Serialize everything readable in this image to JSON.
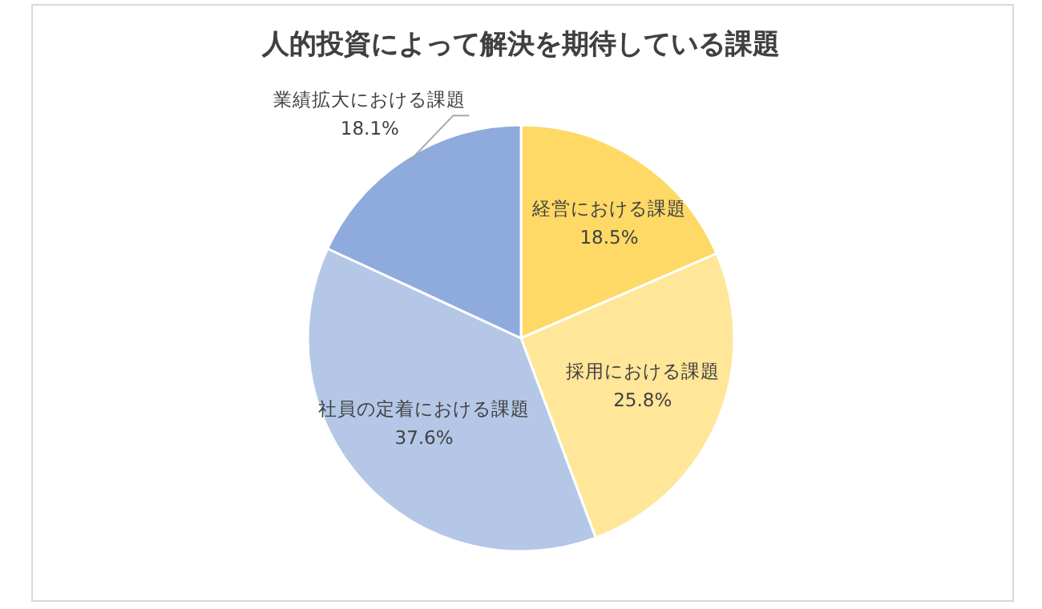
{
  "chart_data": {
    "type": "pie",
    "title": "人的投資によって解決を期待している課題",
    "categories": [
      "経営における課題",
      "採用における課題",
      "社員の定着における課題",
      "業績拡大における課題"
    ],
    "values": [
      18.5,
      25.8,
      37.6,
      18.1
    ],
    "value_labels": [
      "18.5%",
      "25.8%",
      "37.6%",
      "18.1%"
    ],
    "colors": [
      "#ffd966",
      "#ffe699",
      "#b4c7e7",
      "#8faadc"
    ]
  }
}
